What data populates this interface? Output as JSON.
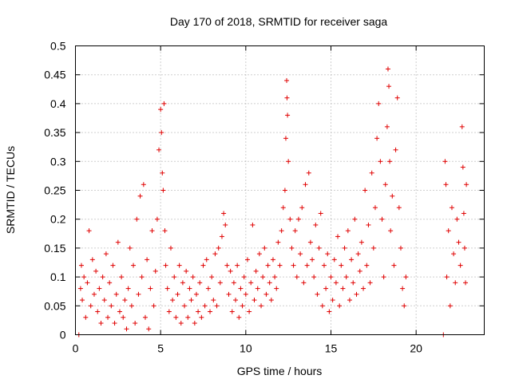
{
  "chart_data": {
    "type": "scatter",
    "title": "Day 170 of 2018, SRMTID for receiver saga",
    "xlabel": "GPS time / hours",
    "ylabel": "SRMTID / TECUs",
    "xlim": [
      0,
      24
    ],
    "ylim": [
      0,
      0.5
    ],
    "xticks": [
      0,
      5,
      10,
      15,
      20
    ],
    "xtick_labels": [
      "0",
      "5",
      "10",
      "15",
      "20"
    ],
    "yticks": [
      0,
      0.05,
      0.1,
      0.15,
      0.2,
      0.25,
      0.3,
      0.35,
      0.4,
      0.45,
      0.5
    ],
    "ytick_labels": [
      "0",
      "0.05",
      "0.1",
      "0.15",
      "0.2",
      "0.25",
      "0.3",
      "0.35",
      "0.4",
      "0.45",
      "0.5"
    ],
    "grid": true,
    "marker": "plus",
    "color": "#e00000",
    "series": [
      {
        "name": "SRMTID",
        "points": [
          [
            0.2,
            0.0
          ],
          [
            0.3,
            0.08
          ],
          [
            0.35,
            0.12
          ],
          [
            0.4,
            0.06
          ],
          [
            0.5,
            0.1
          ],
          [
            0.6,
            0.03
          ],
          [
            0.7,
            0.09
          ],
          [
            0.8,
            0.18
          ],
          [
            0.9,
            0.05
          ],
          [
            1.0,
            0.13
          ],
          [
            1.1,
            0.07
          ],
          [
            1.2,
            0.11
          ],
          [
            1.3,
            0.04
          ],
          [
            1.4,
            0.08
          ],
          [
            1.5,
            0.02
          ],
          [
            1.6,
            0.1
          ],
          [
            1.7,
            0.06
          ],
          [
            1.8,
            0.14
          ],
          [
            1.9,
            0.03
          ],
          [
            2.0,
            0.09
          ],
          [
            2.1,
            0.05
          ],
          [
            2.2,
            0.12
          ],
          [
            2.3,
            0.02
          ],
          [
            2.4,
            0.07
          ],
          [
            2.5,
            0.16
          ],
          [
            2.6,
            0.04
          ],
          [
            2.7,
            0.1
          ],
          [
            2.8,
            0.03
          ],
          [
            2.9,
            0.06
          ],
          [
            3.0,
            0.01
          ],
          [
            3.1,
            0.08
          ],
          [
            3.2,
            0.15
          ],
          [
            3.3,
            0.05
          ],
          [
            3.4,
            0.12
          ],
          [
            3.5,
            0.02
          ],
          [
            3.6,
            0.2
          ],
          [
            3.7,
            0.07
          ],
          [
            3.8,
            0.24
          ],
          [
            3.9,
            0.1
          ],
          [
            4.0,
            0.26
          ],
          [
            4.1,
            0.03
          ],
          [
            4.2,
            0.13
          ],
          [
            4.3,
            0.01
          ],
          [
            4.4,
            0.08
          ],
          [
            4.5,
            0.18
          ],
          [
            4.6,
            0.05
          ],
          [
            4.7,
            0.11
          ],
          [
            4.8,
            0.2
          ],
          [
            4.9,
            0.32
          ],
          [
            5.0,
            0.39
          ],
          [
            5.05,
            0.35
          ],
          [
            5.1,
            0.28
          ],
          [
            5.15,
            0.25
          ],
          [
            5.2,
            0.4
          ],
          [
            5.25,
            0.18
          ],
          [
            5.3,
            0.12
          ],
          [
            5.4,
            0.08
          ],
          [
            5.5,
            0.04
          ],
          [
            5.6,
            0.15
          ],
          [
            5.7,
            0.06
          ],
          [
            5.8,
            0.1
          ],
          [
            5.9,
            0.03
          ],
          [
            6.0,
            0.07
          ],
          [
            6.1,
            0.12
          ],
          [
            6.2,
            0.02
          ],
          [
            6.3,
            0.09
          ],
          [
            6.4,
            0.05
          ],
          [
            6.5,
            0.11
          ],
          [
            6.6,
            0.03
          ],
          [
            6.7,
            0.08
          ],
          [
            6.8,
            0.06
          ],
          [
            6.9,
            0.1
          ],
          [
            7.0,
            0.02
          ],
          [
            7.1,
            0.07
          ],
          [
            7.2,
            0.04
          ],
          [
            7.3,
            0.09
          ],
          [
            7.4,
            0.03
          ],
          [
            7.5,
            0.12
          ],
          [
            7.6,
            0.05
          ],
          [
            7.7,
            0.13
          ],
          [
            7.8,
            0.08
          ],
          [
            7.9,
            0.04
          ],
          [
            8.0,
            0.1
          ],
          [
            8.1,
            0.06
          ],
          [
            8.2,
            0.14
          ],
          [
            8.3,
            0.05
          ],
          [
            8.4,
            0.15
          ],
          [
            8.5,
            0.09
          ],
          [
            8.6,
            0.17
          ],
          [
            8.7,
            0.21
          ],
          [
            8.8,
            0.19
          ],
          [
            8.9,
            0.12
          ],
          [
            9.0,
            0.07
          ],
          [
            9.1,
            0.11
          ],
          [
            9.2,
            0.04
          ],
          [
            9.3,
            0.09
          ],
          [
            9.4,
            0.06
          ],
          [
            9.5,
            0.12
          ],
          [
            9.6,
            0.03
          ],
          [
            9.7,
            0.08
          ],
          [
            9.8,
            0.05
          ],
          [
            9.9,
            0.1
          ],
          [
            10.0,
            0.07
          ],
          [
            10.1,
            0.13
          ],
          [
            10.2,
            0.04
          ],
          [
            10.3,
            0.09
          ],
          [
            10.4,
            0.19
          ],
          [
            10.5,
            0.06
          ],
          [
            10.6,
            0.11
          ],
          [
            10.7,
            0.08
          ],
          [
            10.8,
            0.14
          ],
          [
            10.9,
            0.05
          ],
          [
            11.0,
            0.1
          ],
          [
            11.1,
            0.15
          ],
          [
            11.2,
            0.07
          ],
          [
            11.3,
            0.12
          ],
          [
            11.4,
            0.09
          ],
          [
            11.5,
            0.06
          ],
          [
            11.6,
            0.13
          ],
          [
            11.7,
            0.1
          ],
          [
            11.8,
            0.08
          ],
          [
            11.9,
            0.16
          ],
          [
            12.0,
            0.12
          ],
          [
            12.1,
            0.18
          ],
          [
            12.2,
            0.22
          ],
          [
            12.3,
            0.25
          ],
          [
            12.35,
            0.34
          ],
          [
            12.4,
            0.44
          ],
          [
            12.42,
            0.41
          ],
          [
            12.45,
            0.38
          ],
          [
            12.5,
            0.3
          ],
          [
            12.6,
            0.2
          ],
          [
            12.7,
            0.15
          ],
          [
            12.8,
            0.12
          ],
          [
            12.9,
            0.18
          ],
          [
            13.0,
            0.1
          ],
          [
            13.1,
            0.2
          ],
          [
            13.2,
            0.14
          ],
          [
            13.3,
            0.22
          ],
          [
            13.4,
            0.09
          ],
          [
            13.5,
            0.26
          ],
          [
            13.6,
            0.12
          ],
          [
            13.7,
            0.28
          ],
          [
            13.8,
            0.16
          ],
          [
            13.9,
            0.13
          ],
          [
            14.0,
            0.1
          ],
          [
            14.1,
            0.19
          ],
          [
            14.2,
            0.07
          ],
          [
            14.3,
            0.15
          ],
          [
            14.4,
            0.21
          ],
          [
            14.5,
            0.05
          ],
          [
            14.6,
            0.12
          ],
          [
            14.7,
            0.08
          ],
          [
            14.8,
            0.14
          ],
          [
            14.9,
            0.04
          ],
          [
            15.0,
            0.1
          ],
          [
            15.1,
            0.06
          ],
          [
            15.2,
            0.13
          ],
          [
            15.3,
            0.09
          ],
          [
            15.4,
            0.17
          ],
          [
            15.5,
            0.05
          ],
          [
            15.6,
            0.12
          ],
          [
            15.7,
            0.08
          ],
          [
            15.8,
            0.15
          ],
          [
            15.9,
            0.1
          ],
          [
            16.0,
            0.18
          ],
          [
            16.1,
            0.06
          ],
          [
            16.2,
            0.13
          ],
          [
            16.3,
            0.09
          ],
          [
            16.4,
            0.2
          ],
          [
            16.5,
            0.07
          ],
          [
            16.6,
            0.14
          ],
          [
            16.7,
            0.11
          ],
          [
            16.8,
            0.16
          ],
          [
            16.9,
            0.08
          ],
          [
            17.0,
            0.25
          ],
          [
            17.1,
            0.12
          ],
          [
            17.2,
            0.19
          ],
          [
            17.3,
            0.09
          ],
          [
            17.4,
            0.28
          ],
          [
            17.5,
            0.15
          ],
          [
            17.6,
            0.22
          ],
          [
            17.7,
            0.34
          ],
          [
            17.8,
            0.4
          ],
          [
            17.9,
            0.3
          ],
          [
            18.0,
            0.2
          ],
          [
            18.1,
            0.1
          ],
          [
            18.2,
            0.26
          ],
          [
            18.3,
            0.36
          ],
          [
            18.35,
            0.46
          ],
          [
            18.4,
            0.43
          ],
          [
            18.45,
            0.3
          ],
          [
            18.5,
            0.18
          ],
          [
            18.6,
            0.24
          ],
          [
            18.7,
            0.12
          ],
          [
            18.8,
            0.32
          ],
          [
            18.9,
            0.41
          ],
          [
            19.0,
            0.22
          ],
          [
            19.1,
            0.15
          ],
          [
            19.2,
            0.08
          ],
          [
            19.3,
            0.05
          ],
          [
            19.4,
            0.1
          ],
          [
            21.6,
            0.0
          ],
          [
            21.7,
            0.3
          ],
          [
            21.75,
            0.26
          ],
          [
            21.8,
            0.1
          ],
          [
            21.9,
            0.18
          ],
          [
            22.0,
            0.05
          ],
          [
            22.1,
            0.22
          ],
          [
            22.2,
            0.14
          ],
          [
            22.3,
            0.09
          ],
          [
            22.4,
            0.2
          ],
          [
            22.5,
            0.16
          ],
          [
            22.6,
            0.12
          ],
          [
            22.7,
            0.36
          ],
          [
            22.75,
            0.29
          ],
          [
            22.8,
            0.21
          ],
          [
            22.85,
            0.15
          ],
          [
            22.9,
            0.09
          ],
          [
            22.95,
            0.26
          ]
        ]
      }
    ],
    "seed": 170
  }
}
